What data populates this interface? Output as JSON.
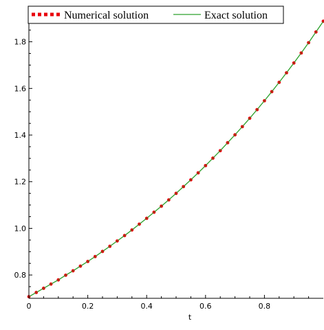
{
  "chart_data": {
    "type": "line",
    "title": "",
    "xlabel": "t",
    "ylabel": "",
    "xlim": [
      0,
      1
    ],
    "ylim": [
      0.7,
      1.92
    ],
    "grid": false,
    "legend_placement": "top-left",
    "x_ticks": [
      0,
      0.2,
      0.4,
      0.6,
      0.8
    ],
    "x_tick_labels": [
      "0",
      "0.2",
      "0.4",
      "0.6",
      "0.8"
    ],
    "y_ticks": [
      0.8,
      1.0,
      1.2,
      1.4,
      1.6,
      1.8
    ],
    "y_tick_labels": [
      "0.8",
      "1.0",
      "1.2",
      "1.4",
      "1.6",
      "1.8"
    ],
    "series": [
      {
        "name": "Numerical solution",
        "style": "dotted",
        "color": "#e8000b",
        "x": [
          0,
          0.025,
          0.05,
          0.075,
          0.1,
          0.125,
          0.15,
          0.175,
          0.2,
          0.225,
          0.25,
          0.275,
          0.3,
          0.325,
          0.35,
          0.375,
          0.4,
          0.425,
          0.45,
          0.475,
          0.5,
          0.525,
          0.55,
          0.575,
          0.6,
          0.625,
          0.65,
          0.675,
          0.7,
          0.725,
          0.75,
          0.775,
          0.8,
          0.825,
          0.85,
          0.875,
          0.9,
          0.925,
          0.95,
          0.975,
          1.0
        ],
        "y": [
          0.707,
          0.725,
          0.743,
          0.761,
          0.779,
          0.799,
          0.818,
          0.838,
          0.858,
          0.879,
          0.901,
          0.923,
          0.946,
          0.969,
          0.993,
          1.018,
          1.043,
          1.069,
          1.095,
          1.122,
          1.15,
          1.179,
          1.208,
          1.238,
          1.269,
          1.301,
          1.333,
          1.367,
          1.401,
          1.436,
          1.472,
          1.509,
          1.547,
          1.586,
          1.626,
          1.667,
          1.709,
          1.752,
          1.796,
          1.842,
          1.888
        ]
      },
      {
        "name": "Exact solution",
        "style": "solid",
        "color": "#2ca02c",
        "x": [
          0,
          0.025,
          0.05,
          0.075,
          0.1,
          0.125,
          0.15,
          0.175,
          0.2,
          0.225,
          0.25,
          0.275,
          0.3,
          0.325,
          0.35,
          0.375,
          0.4,
          0.425,
          0.45,
          0.475,
          0.5,
          0.525,
          0.55,
          0.575,
          0.6,
          0.625,
          0.65,
          0.675,
          0.7,
          0.725,
          0.75,
          0.775,
          0.8,
          0.825,
          0.85,
          0.875,
          0.9,
          0.925,
          0.95,
          0.975,
          1.0
        ],
        "y": [
          0.707,
          0.725,
          0.743,
          0.761,
          0.779,
          0.799,
          0.818,
          0.838,
          0.858,
          0.879,
          0.901,
          0.923,
          0.946,
          0.969,
          0.993,
          1.018,
          1.043,
          1.069,
          1.095,
          1.122,
          1.15,
          1.179,
          1.208,
          1.238,
          1.269,
          1.301,
          1.333,
          1.367,
          1.401,
          1.436,
          1.472,
          1.509,
          1.547,
          1.586,
          1.626,
          1.667,
          1.709,
          1.752,
          1.796,
          1.842,
          1.888
        ]
      }
    ]
  }
}
